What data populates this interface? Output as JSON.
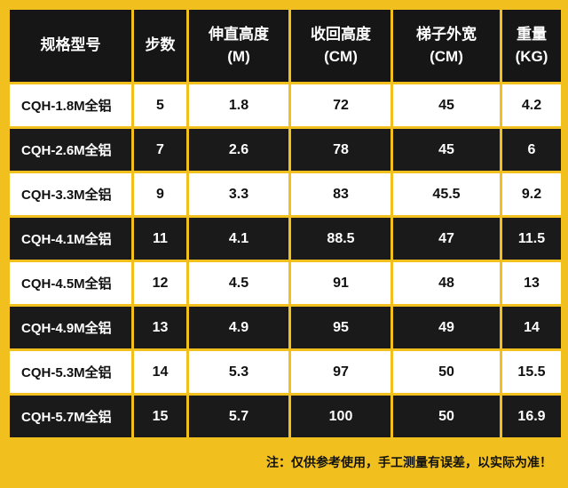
{
  "colors": {
    "accent_yellow": "#F2C01E",
    "dark_row": "#1A1A1A",
    "light_row": "#FFFFFF"
  },
  "header": {
    "columns": [
      {
        "title": "规格型号",
        "unit": ""
      },
      {
        "title": "步数",
        "unit": ""
      },
      {
        "title": "伸直高度",
        "unit": "(M)"
      },
      {
        "title": "收回高度",
        "unit": "(CM)"
      },
      {
        "title": "梯子外宽",
        "unit": "(CM)"
      },
      {
        "title": "重量",
        "unit": "(KG)"
      }
    ]
  },
  "rows": [
    [
      "CQH-1.8M全铝",
      "5",
      "1.8",
      "72",
      "45",
      "4.2"
    ],
    [
      "CQH-2.6M全铝",
      "7",
      "2.6",
      "78",
      "45",
      "6"
    ],
    [
      "CQH-3.3M全铝",
      "9",
      "3.3",
      "83",
      "45.5",
      "9.2"
    ],
    [
      "CQH-4.1M全铝",
      "11",
      "4.1",
      "88.5",
      "47",
      "11.5"
    ],
    [
      "CQH-4.5M全铝",
      "12",
      "4.5",
      "91",
      "48",
      "13"
    ],
    [
      "CQH-4.9M全铝",
      "13",
      "4.9",
      "95",
      "49",
      "14"
    ],
    [
      "CQH-5.3M全铝",
      "14",
      "5.3",
      "97",
      "50",
      "15.5"
    ],
    [
      "CQH-5.7M全铝",
      "15",
      "5.7",
      "100",
      "50",
      "16.9"
    ]
  ],
  "footer_note": "注：仅供参考使用，手工测量有误差，以实际为准！",
  "chart_data": {
    "type": "table",
    "title": "梯子规格参数表",
    "columns": [
      "规格型号",
      "步数",
      "伸直高度 (M)",
      "收回高度 (CM)",
      "梯子外宽 (CM)",
      "重量 (KG)"
    ],
    "rows": [
      [
        "CQH-1.8M全铝",
        5,
        1.8,
        72,
        45,
        4.2
      ],
      [
        "CQH-2.6M全铝",
        7,
        2.6,
        78,
        45,
        6
      ],
      [
        "CQH-3.3M全铝",
        9,
        3.3,
        83,
        45.5,
        9.2
      ],
      [
        "CQH-4.1M全铝",
        11,
        4.1,
        88.5,
        47,
        11.5
      ],
      [
        "CQH-4.5M全铝",
        12,
        4.5,
        91,
        48,
        13
      ],
      [
        "CQH-4.9M全铝",
        13,
        4.9,
        95,
        49,
        14
      ],
      [
        "CQH-5.3M全铝",
        14,
        5.3,
        97,
        50,
        15.5
      ],
      [
        "CQH-5.7M全铝",
        15,
        5.7,
        100,
        50,
        16.9
      ]
    ],
    "note": "注：仅供参考使用，手工测量有误差，以实际为准！",
    "layout_hints": {
      "striped": true,
      "header_background": "#161616",
      "grid_color": "#F2C01E"
    }
  }
}
